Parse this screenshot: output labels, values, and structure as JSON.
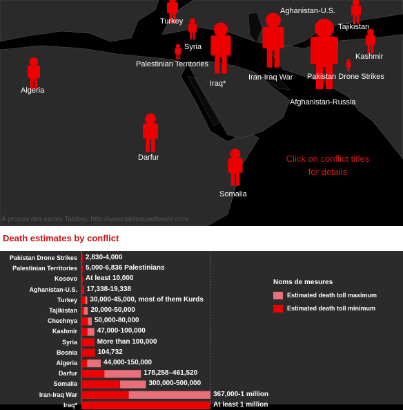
{
  "map": {
    "labels": [
      "Algeria",
      "Turkey",
      "Syria",
      "Palestinian Territories",
      "Iraq*",
      "Aghanistan-U.S.",
      "Tajikistan",
      "Kashmir",
      "Iran-Iraq War",
      "Pakistan Drone Strikes",
      "Afghanistan-Russia",
      "Darfur",
      "Somalia"
    ],
    "hint": "Click on conflict titles for details",
    "attribution": "À propos des cartes Tableau http://www.tableausoftware.com"
  },
  "title": "Death estimates by conflict",
  "legend": {
    "title": "Noms de mesures",
    "items": [
      {
        "label": "Estimated death toll maximum",
        "color": "#e8707b"
      },
      {
        "label": "Estimated death toll minimum",
        "color": "#ee0000"
      }
    ]
  },
  "colors": {
    "accent": "#ee0000",
    "light": "#e8707b",
    "map_land": "#2a2a2a",
    "chart_bg": "#2b2b2b"
  },
  "chart_data": {
    "type": "bar",
    "orientation": "horizontal",
    "title": "Death estimates by conflict",
    "categories": [
      "Pakistan Drone Strikes",
      "Palestinian Territories",
      "Kosovo",
      "Aghanistan-U.S.",
      "Turkey",
      "Tajikistan",
      "Chechnya",
      "Kashmir",
      "Syria",
      "Bosnia",
      "Algeria",
      "Darfur",
      "Somalia",
      "Iran-Iraq War",
      "Iraq*"
    ],
    "series": [
      {
        "name": "Estimated death toll minimum",
        "values": [
          2830,
          5000,
          10000,
          17338,
          30000,
          20000,
          50000,
          47000,
          100000,
          104732,
          44000,
          178258,
          300000,
          367000,
          1000000
        ]
      },
      {
        "name": "Estimated death toll maximum",
        "values": [
          4000,
          6836,
          10000,
          19338,
          45000,
          50000,
          80000,
          100000,
          100000,
          104732,
          150000,
          461520,
          500000,
          1000000,
          1000000
        ]
      }
    ],
    "data_labels": [
      "2,830-4,000",
      "5,000-6,836 Palestinians",
      "At least 10,000",
      "17,338-19,338",
      "30,000-45,000, most of them Kurds",
      "20,000-50,000",
      "50,000-80,000",
      "47,000-100,000",
      "More than 100,000",
      "104,732",
      "44,000-150,000",
      "178,258–461,520",
      "300,000-500,000",
      "367,000-1 million",
      "At least 1 million"
    ],
    "xlim": [
      0,
      1000000
    ]
  }
}
